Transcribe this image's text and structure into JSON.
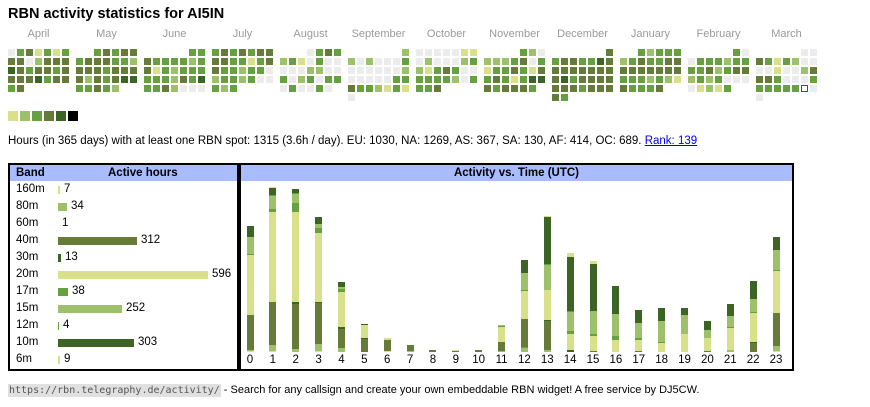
{
  "title": "RBN activity statistics for AI5IN",
  "colors": {
    "0": "#ececec",
    "1": "#d8e08a",
    "2": "#9dc06a",
    "3": "#66a040",
    "4": "#667a3a",
    "5": "#3c6525",
    "6": "#000000",
    "today_outline": "#ff0000",
    "header_bg": "#a9bcfe"
  },
  "calendar": {
    "months": [
      {
        "name": "April",
        "offset": 0,
        "levels": [
          0,
          3,
          4,
          1,
          3,
          1,
          3,
          4,
          4,
          0,
          2,
          4,
          4,
          4,
          5,
          4,
          3,
          4,
          4,
          3,
          4,
          4,
          4,
          4,
          5,
          3,
          4,
          4,
          3,
          4
        ]
      },
      {
        "name": "May",
        "offset": 2,
        "levels": [
          3,
          4,
          3,
          4,
          4,
          3,
          4,
          4,
          4,
          3,
          3,
          2,
          4,
          4,
          4,
          3,
          4,
          4,
          4,
          4,
          2,
          4,
          3,
          4,
          5,
          5,
          3,
          3,
          4,
          3,
          2
        ]
      },
      {
        "name": "June",
        "offset": 5,
        "levels": [
          3,
          3,
          4,
          3,
          3,
          3,
          3,
          2,
          3,
          4,
          1,
          3,
          2,
          3,
          3,
          3,
          3,
          3,
          3,
          2,
          4,
          3,
          5,
          3,
          3,
          4,
          2,
          0,
          0,
          0
        ]
      },
      {
        "name": "July",
        "offset": 0,
        "levels": [
          3,
          4,
          3,
          4,
          3,
          4,
          4,
          4,
          4,
          3,
          3,
          1,
          3,
          4,
          4,
          3,
          3,
          2,
          3,
          3,
          0,
          2,
          3,
          3,
          2,
          3,
          0,
          0,
          3,
          2,
          3
        ]
      },
      {
        "name": "August",
        "offset": 3,
        "levels": [
          0,
          3,
          4,
          3,
          2,
          3,
          1,
          0,
          3,
          0,
          0,
          0,
          0,
          0,
          2,
          2,
          0,
          0,
          3,
          0,
          2,
          3,
          0,
          3,
          3,
          0,
          3,
          0,
          0,
          3,
          0
        ]
      },
      {
        "name": "September",
        "offset": 6,
        "levels": [
          2,
          2,
          0,
          2,
          0,
          0,
          0,
          3,
          0,
          0,
          0,
          0,
          0,
          0,
          2,
          0,
          0,
          0,
          0,
          0,
          3,
          3,
          4,
          3,
          3,
          2,
          1,
          3,
          1,
          0
        ]
      },
      {
        "name": "October",
        "offset": 0,
        "levels": [
          0,
          0,
          0,
          0,
          0,
          1,
          1,
          0,
          2,
          0,
          0,
          0,
          2,
          3,
          2,
          1,
          3,
          4,
          3,
          0,
          0,
          3,
          3,
          3,
          3,
          2,
          0,
          3,
          3,
          3,
          4
        ]
      },
      {
        "name": "November",
        "offset": 4,
        "levels": [
          3,
          2,
          0,
          2,
          2,
          2,
          3,
          4,
          0,
          3,
          1,
          3,
          3,
          4,
          3,
          1,
          4,
          3,
          4,
          3,
          1,
          3,
          5,
          5,
          4,
          3,
          4,
          4,
          4,
          3
        ]
      },
      {
        "name": "December",
        "offset": 6,
        "levels": [
          4,
          3,
          4,
          4,
          3,
          3,
          5,
          4,
          4,
          4,
          4,
          4,
          4,
          4,
          4,
          4,
          5,
          3,
          4,
          4,
          4,
          4,
          4,
          4,
          4,
          3,
          4,
          4,
          4,
          4,
          3
        ]
      },
      {
        "name": "January",
        "offset": 2,
        "levels": [
          3,
          2,
          3,
          3,
          3,
          2,
          3,
          4,
          3,
          3,
          4,
          4,
          4,
          4,
          4,
          4,
          4,
          4,
          4,
          3,
          3,
          3,
          2,
          3,
          2,
          1,
          4,
          3,
          3,
          3,
          4
        ]
      },
      {
        "name": "February",
        "offset": 5,
        "levels": [
          3,
          0,
          0,
          3,
          3,
          3,
          2,
          3,
          3,
          3,
          3,
          4,
          2,
          3,
          4,
          4,
          2,
          3,
          2,
          3,
          0,
          0,
          0,
          0,
          1,
          2,
          1,
          3
        ]
      },
      {
        "name": "March",
        "offset": 5,
        "levels": [
          0,
          0,
          4,
          3,
          1,
          3,
          2,
          0,
          0,
          0,
          0,
          1,
          0,
          0,
          2,
          4,
          4,
          4,
          3,
          0,
          0,
          0,
          3,
          3,
          3,
          3,
          3,
          3,
          -1,
          0,
          0
        ]
      }
    ],
    "legend_levels": [
      1,
      2,
      3,
      4,
      5,
      6
    ]
  },
  "summary": {
    "text": "Hours (in 365 days) with at least one RBN spot: 1315 (3.6h / day). EU: 1030, NA: 1269, AS: 367, SA: 130, AF: 414, OC: 689. ",
    "rank_link": "Rank: 139"
  },
  "bands_table": {
    "header_band": "Band",
    "header_hours": "Active hours",
    "rows": [
      {
        "band": "160m",
        "hours": 7,
        "hours_label": "7",
        "color": "#d8e08a"
      },
      {
        "band": "80m",
        "hours": 34,
        "hours_label": "34",
        "color": "#9dc06a"
      },
      {
        "band": "60m",
        "hours": 1,
        "hours_label": "1",
        "color": "#66a040"
      },
      {
        "band": "40m",
        "hours": 312,
        "hours_label": "312",
        "color": "#667a3a"
      },
      {
        "band": "30m",
        "hours": 13,
        "hours_label": "13",
        "color": "#3c6525"
      },
      {
        "band": "20m",
        "hours": 596,
        "hours_label": "596",
        "color": "#d8e08a"
      },
      {
        "band": "17m",
        "hours": 38,
        "hours_label": "38",
        "color": "#66a040"
      },
      {
        "band": "15m",
        "hours": 252,
        "hours_label": "252",
        "color": "#9dc06a"
      },
      {
        "band": "12m",
        "hours": 4,
        "hours_label": "4",
        "color": "#66a040"
      },
      {
        "band": "10m",
        "hours": 303,
        "hours_label": "303",
        "color": "#3c6525"
      },
      {
        "band": "6m",
        "hours": 9,
        "hours_label": "9",
        "color": "#d8e08a"
      }
    ]
  },
  "chart_data": {
    "type": "bar",
    "stacked": true,
    "title": "Activity vs. Time (UTC)",
    "xlabel": "",
    "ylabel": "",
    "categories": [
      "0",
      "1",
      "2",
      "3",
      "4",
      "5",
      "6",
      "7",
      "8",
      "9",
      "10",
      "11",
      "12",
      "13",
      "14",
      "15",
      "16",
      "17",
      "18",
      "19",
      "20",
      "21",
      "22",
      "23"
    ],
    "series": [
      {
        "name": "160m",
        "color": "#d8e08a",
        "values": [
          1,
          1,
          0,
          1,
          0,
          0,
          1,
          0,
          0,
          0,
          0,
          0,
          0,
          0,
          0,
          0,
          0,
          0,
          0,
          0,
          0,
          0,
          0,
          1
        ]
      },
      {
        "name": "80m",
        "color": "#9dc06a",
        "values": [
          1,
          6,
          3,
          7,
          4,
          0,
          0,
          1,
          0,
          0,
          0,
          1,
          4,
          2,
          0,
          0,
          0,
          0,
          0,
          0,
          0,
          2,
          0,
          5
        ]
      },
      {
        "name": "60m",
        "color": "#66a040",
        "values": [
          0,
          0,
          0,
          0,
          0,
          0,
          0,
          0,
          0,
          0,
          0,
          0,
          1,
          0,
          0,
          0,
          0,
          0,
          0,
          0,
          0,
          0,
          0,
          0
        ]
      },
      {
        "name": "40m",
        "color": "#667a3a",
        "values": [
          35,
          43,
          45,
          41,
          19,
          13,
          11,
          6,
          2,
          1,
          2,
          9,
          28,
          29,
          0,
          1,
          0,
          1,
          0,
          0,
          1,
          0,
          9,
          33
        ]
      },
      {
        "name": "30m",
        "color": "#3c6525",
        "values": [
          0,
          0,
          2,
          1,
          2,
          1,
          0,
          0,
          0,
          0,
          0,
          0,
          0,
          1,
          2,
          0,
          0,
          0,
          0,
          0,
          0,
          0,
          1,
          0
        ]
      },
      {
        "name": "20m",
        "color": "#d8e08a",
        "values": [
          60,
          90,
          90,
          69,
          35,
          13,
          2,
          0,
          0,
          1,
          0,
          15,
          28,
          30,
          16,
          15,
          12,
          11,
          9,
          18,
          13,
          22,
          29,
          42
        ]
      },
      {
        "name": "17m",
        "color": "#66a040",
        "values": [
          1,
          3,
          9,
          5,
          3,
          0,
          0,
          0,
          0,
          0,
          0,
          1,
          1,
          0,
          3,
          2,
          4,
          2,
          1,
          0,
          0,
          1,
          1,
          1
        ]
      },
      {
        "name": "15m",
        "color": "#9dc06a",
        "values": [
          17,
          13,
          9,
          4,
          2,
          0,
          0,
          0,
          0,
          0,
          0,
          1,
          17,
          25,
          19,
          23,
          22,
          15,
          21,
          19,
          8,
          11,
          13,
          20
        ]
      },
      {
        "name": "12m",
        "color": "#66a040",
        "values": [
          0,
          1,
          1,
          0,
          0,
          0,
          0,
          0,
          0,
          0,
          0,
          0,
          0,
          1,
          1,
          0,
          0,
          0,
          0,
          0,
          0,
          0,
          0,
          0
        ]
      },
      {
        "name": "10m",
        "color": "#3c6525",
        "values": [
          11,
          7,
          4,
          7,
          5,
          1,
          0,
          0,
          0,
          0,
          0,
          0,
          13,
          47,
          54,
          47,
          28,
          13,
          13,
          7,
          9,
          12,
          18,
          13
        ]
      },
      {
        "name": "6m",
        "color": "#d8e08a",
        "values": [
          0,
          1,
          0,
          0,
          0,
          0,
          0,
          0,
          0,
          0,
          0,
          0,
          0,
          1,
          4,
          3,
          0,
          0,
          0,
          0,
          0,
          0,
          0,
          0
        ]
      }
    ]
  },
  "footer": {
    "url": "https://rbn.telegraphy.de/activity/",
    "text": " - Search for any callsign and create your own embeddable RBN widget! A free service by DJ5CW."
  }
}
